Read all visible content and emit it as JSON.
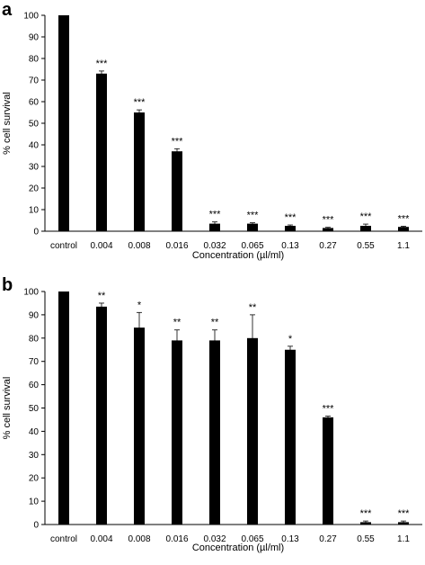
{
  "chart_data": [
    {
      "panel": "a",
      "type": "bar",
      "categories": [
        "control",
        "0.004",
        "0.008",
        "0.016",
        "0.032",
        "0.065",
        "0.13",
        "0.27",
        "0.55",
        "1.1"
      ],
      "values": [
        100,
        73,
        55,
        37,
        3.5,
        3.5,
        2.5,
        1.5,
        2.5,
        2
      ],
      "errors": [
        0,
        1.2,
        1.2,
        1.2,
        0.8,
        0.4,
        0.4,
        0.3,
        0.8,
        0.3
      ],
      "significance": [
        "",
        "***",
        "***",
        "***",
        "***",
        "***",
        "***",
        "***",
        "***",
        "***"
      ],
      "xlabel": "Concentration (µl/ml)",
      "ylabel": "% cell survival",
      "ylim": [
        0,
        100
      ],
      "yticks": [
        0,
        10,
        20,
        30,
        40,
        50,
        60,
        70,
        80,
        90,
        100
      ],
      "grid": false,
      "bar_color": "#000000"
    },
    {
      "panel": "b",
      "type": "bar",
      "categories": [
        "control",
        "0.004",
        "0.008",
        "0.016",
        "0.032",
        "0.065",
        "0.13",
        "0.27",
        "0.55",
        "1.1"
      ],
      "values": [
        100,
        93.5,
        84.5,
        79,
        79,
        80,
        75,
        46,
        1,
        1
      ],
      "errors": [
        0,
        1.5,
        6.5,
        4.5,
        4.5,
        10,
        1.5,
        0.5,
        0.5,
        0.5
      ],
      "significance": [
        "",
        "**",
        "*",
        "**",
        "**",
        "**",
        "*",
        "***",
        "***",
        "***"
      ],
      "xlabel": "Concentration (µl/ml)",
      "ylabel": "% cell survival",
      "ylim": [
        0,
        100
      ],
      "yticks": [
        0,
        10,
        20,
        30,
        40,
        50,
        60,
        70,
        80,
        90,
        100
      ],
      "grid": false,
      "bar_color": "#000000"
    }
  ]
}
